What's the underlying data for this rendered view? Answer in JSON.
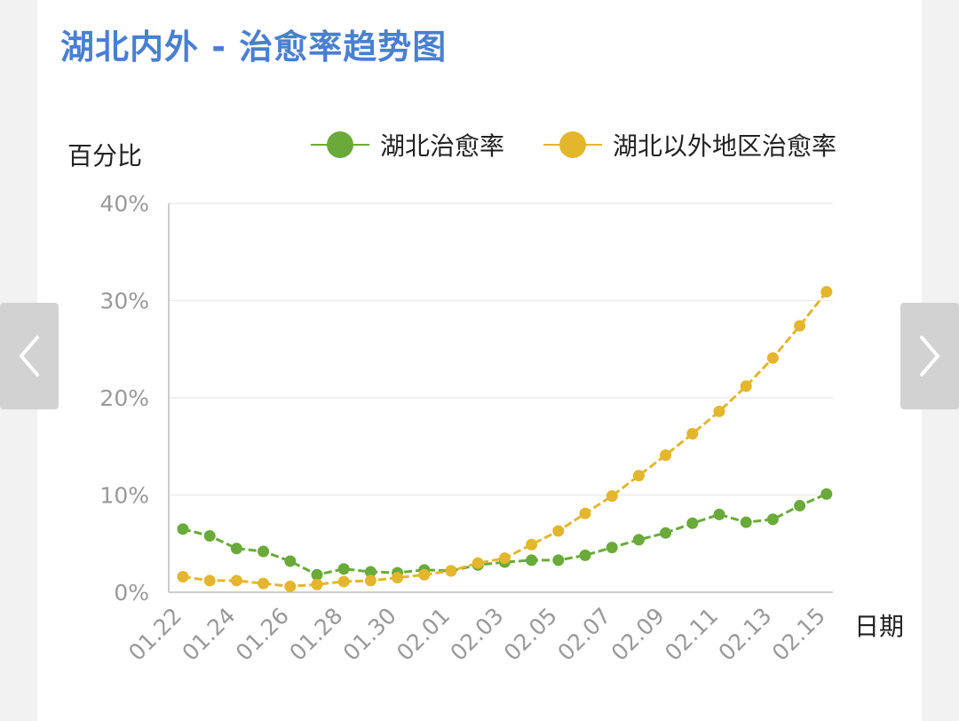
{
  "title": "湖北内外 - 治愈率趋势图",
  "colors": {
    "green": "#6aaa3a",
    "yellow": "#e3b62d",
    "title": "#4a7fd0",
    "axis": "#cccccc",
    "tick": "#999999"
  },
  "nav": {
    "prev_icon": "chevron-left-icon",
    "next_icon": "chevron-right-icon"
  },
  "chart_data": {
    "type": "line",
    "title": "湖北内外 - 治愈率趋势图",
    "ylabel": "百分比",
    "xlabel": "日期",
    "ylim": [
      0,
      40
    ],
    "yticks": [
      "0%",
      "10%",
      "20%",
      "30%",
      "40%"
    ],
    "grid": true,
    "legend_position": "top-right",
    "x": [
      "01.22",
      "01.23",
      "01.24",
      "01.25",
      "01.26",
      "01.27",
      "01.28",
      "01.29",
      "01.30",
      "01.31",
      "02.01",
      "02.02",
      "02.03",
      "02.04",
      "02.05",
      "02.06",
      "02.07",
      "02.08",
      "02.09",
      "02.10",
      "02.11",
      "02.12",
      "02.13",
      "02.14",
      "02.15"
    ],
    "xtick_labels": [
      "01.22",
      "01.24",
      "01.26",
      "01.28",
      "01.30",
      "02.01",
      "02.03",
      "02.05",
      "02.07",
      "02.09",
      "02.11",
      "02.13",
      "02.15"
    ],
    "series": [
      {
        "name": "湖北治愈率",
        "color": "#6aaa3a",
        "values": [
          6.5,
          5.8,
          4.5,
          4.2,
          3.2,
          1.8,
          2.4,
          2.1,
          2.0,
          2.3,
          2.2,
          2.8,
          3.1,
          3.3,
          3.3,
          3.8,
          4.6,
          5.4,
          6.1,
          7.1,
          8.0,
          7.2,
          7.5,
          8.9,
          10.1
        ]
      },
      {
        "name": "湖北以外地区治愈率",
        "color": "#e3b62d",
        "values": [
          1.6,
          1.2,
          1.2,
          0.9,
          0.6,
          0.8,
          1.1,
          1.2,
          1.5,
          1.8,
          2.2,
          3.0,
          3.5,
          4.9,
          6.3,
          8.1,
          9.9,
          12.0,
          14.1,
          16.3,
          18.6,
          21.2,
          24.1,
          27.4,
          30.9
        ]
      }
    ]
  }
}
